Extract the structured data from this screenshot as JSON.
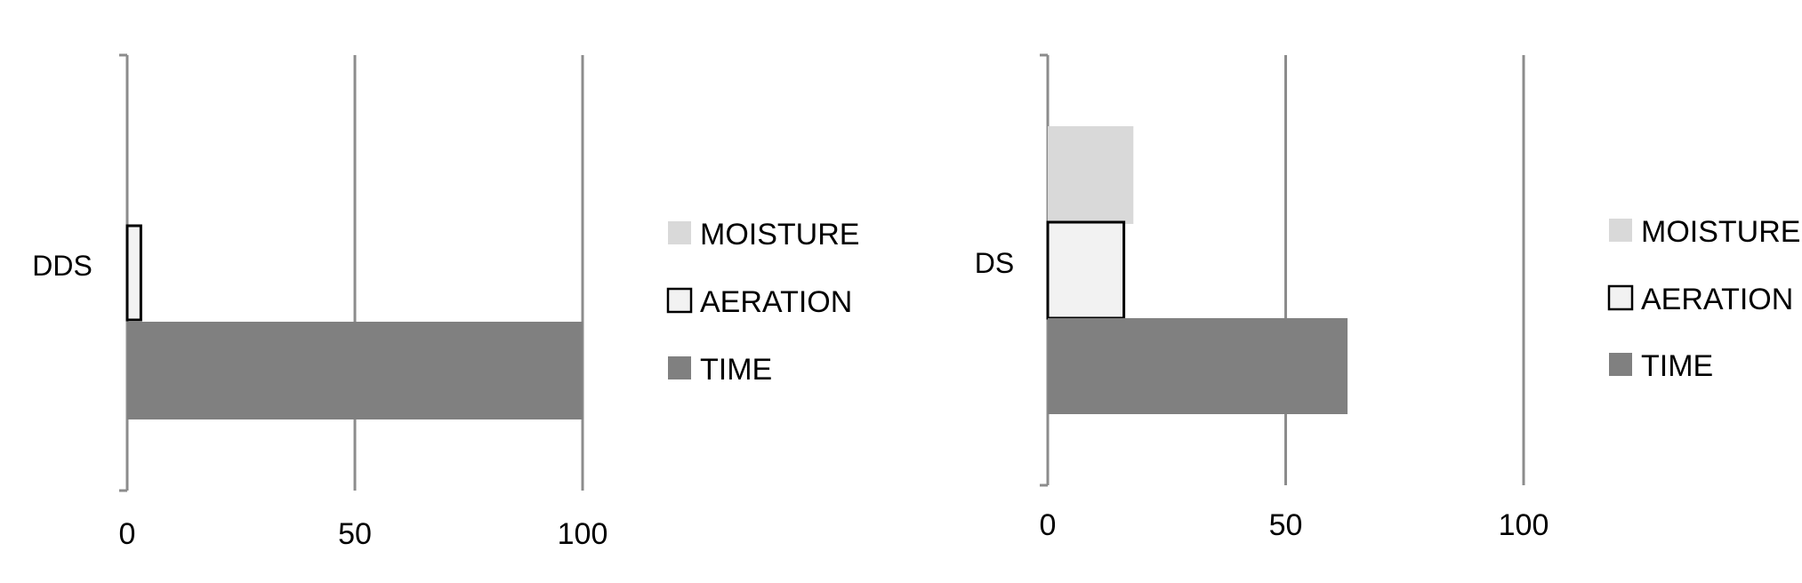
{
  "chart_data": [
    {
      "type": "bar",
      "orientation": "horizontal",
      "categories": [
        "DDS"
      ],
      "series": [
        {
          "name": "MOISTURE",
          "values": [
            0
          ],
          "color": "#d9d9d9"
        },
        {
          "name": "AERATION",
          "values": [
            3
          ],
          "color": "#f2f2f2"
        },
        {
          "name": "TIME",
          "values": [
            100
          ],
          "color": "#808080"
        }
      ],
      "xlim": [
        0,
        100
      ],
      "xticks": [
        "0",
        "50",
        "100"
      ],
      "grid": true,
      "legend": "right"
    },
    {
      "type": "bar",
      "orientation": "horizontal",
      "categories": [
        "DS"
      ],
      "series": [
        {
          "name": "MOISTURE",
          "values": [
            18
          ],
          "color": "#d9d9d9"
        },
        {
          "name": "AERATION",
          "values": [
            16
          ],
          "color": "#f2f2f2"
        },
        {
          "name": "TIME",
          "values": [
            63
          ],
          "color": "#808080"
        }
      ],
      "xlim": [
        0,
        100
      ],
      "xticks": [
        "0",
        "50",
        "100"
      ],
      "grid": true,
      "legend": "right"
    }
  ]
}
